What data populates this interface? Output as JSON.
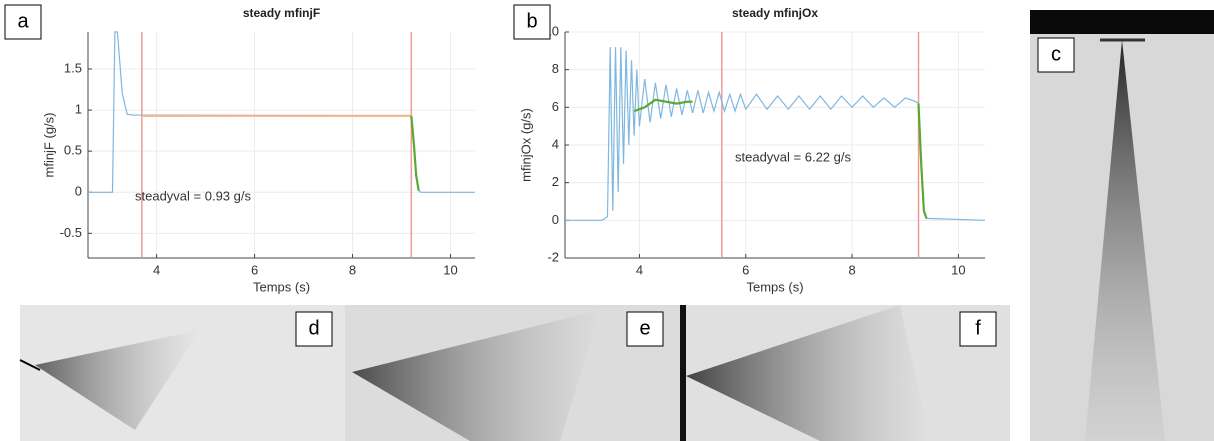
{
  "chart_data": [
    {
      "type": "line",
      "panel_label": "a",
      "title": "steady mfinjF",
      "x_label": "Temps (s)",
      "y_label": "mfinjF (g/s)",
      "annotation": "steadyval = 0.93 g/s",
      "xlim": [
        2.6,
        10.5
      ],
      "xticks": [
        4,
        6,
        8,
        10
      ],
      "ylim": [
        -0.8,
        1.95
      ],
      "yticks": [
        -0.5,
        0,
        0.5,
        1,
        1.5
      ],
      "grid": true,
      "vlines": [
        3.7,
        9.2
      ],
      "vline_color": "#f19a9a",
      "series": [
        {
          "color": "#7fb7e0",
          "x": [
            2.6,
            3.1,
            3.15,
            3.2,
            3.3,
            3.4,
            3.5,
            9.2,
            9.25,
            9.3,
            9.35,
            9.4,
            10.5
          ],
          "values": [
            0,
            0,
            1.95,
            1.95,
            1.2,
            0.95,
            0.94,
            0.93,
            0.6,
            0.2,
            0.02,
            0,
            0
          ]
        },
        {
          "color": "#f3b38a",
          "x": [
            3.7,
            9.2
          ],
          "values": [
            0.93,
            0.93
          ]
        },
        {
          "color": "#5aa832",
          "x": [
            9.2,
            9.25,
            9.3,
            9.35
          ],
          "values": [
            0.93,
            0.6,
            0.2,
            0.02
          ]
        }
      ]
    },
    {
      "type": "line",
      "panel_label": "b",
      "title": "steady mfinjOx",
      "x_label": "Temps (s)",
      "y_label": "mfinjOx (g/s)",
      "annotation": "steadyval = 6.22 g/s",
      "xlim": [
        2.6,
        10.5
      ],
      "xticks": [
        4,
        6,
        8,
        10
      ],
      "ylim": [
        -2,
        10
      ],
      "yticks": [
        -2,
        0,
        2,
        4,
        6,
        8,
        10
      ],
      "grid": true,
      "vlines": [
        5.55,
        9.25
      ],
      "vline_color": "#f19a9a",
      "series": [
        {
          "color": "#7fb7e0",
          "x": [
            2.6,
            3.3,
            3.4,
            3.45,
            3.5,
            3.55,
            3.6,
            3.65,
            3.7,
            3.75,
            3.8,
            3.85,
            3.9,
            3.95,
            4.0,
            4.1,
            4.2,
            4.3,
            4.4,
            4.5,
            4.6,
            4.7,
            4.8,
            4.9,
            5.0,
            5.1,
            5.2,
            5.3,
            5.4,
            5.5,
            5.6,
            5.7,
            5.8,
            5.9,
            6.0,
            6.2,
            6.4,
            6.6,
            6.8,
            7.0,
            7.2,
            7.4,
            7.6,
            7.8,
            8.0,
            8.2,
            8.4,
            8.6,
            8.8,
            9.0,
            9.2,
            9.25,
            9.3,
            9.35,
            9.4,
            10.5
          ],
          "values": [
            0,
            0,
            0.2,
            9.2,
            0.5,
            9.2,
            1.5,
            9.2,
            3,
            9,
            4,
            8.5,
            4.5,
            8,
            5,
            7.5,
            5.2,
            7.3,
            5.4,
            7.2,
            5.5,
            7,
            5.6,
            6.9,
            5.7,
            6.9,
            5.7,
            6.8,
            5.8,
            6.8,
            5.8,
            6.7,
            5.8,
            6.7,
            5.9,
            6.7,
            5.9,
            6.6,
            5.9,
            6.6,
            5.9,
            6.6,
            5.9,
            6.6,
            6.0,
            6.6,
            6.0,
            6.5,
            6.0,
            6.5,
            6.3,
            6.2,
            3,
            0.5,
            0.1,
            0
          ]
        },
        {
          "color": "#5aa832",
          "x": [
            3.9,
            4.1,
            4.3,
            4.5,
            4.7,
            4.9,
            5.0,
            7,
            9.25,
            9.3,
            9.35,
            9.4
          ],
          "values": [
            5.8,
            6.0,
            6.4,
            6.3,
            6.2,
            6.3,
            6.3,
            null,
            6.2,
            3,
            0.5,
            0.1
          ]
        }
      ]
    }
  ],
  "images": [
    {
      "label": "c"
    },
    {
      "label": "d"
    },
    {
      "label": "e"
    },
    {
      "label": "f"
    }
  ]
}
